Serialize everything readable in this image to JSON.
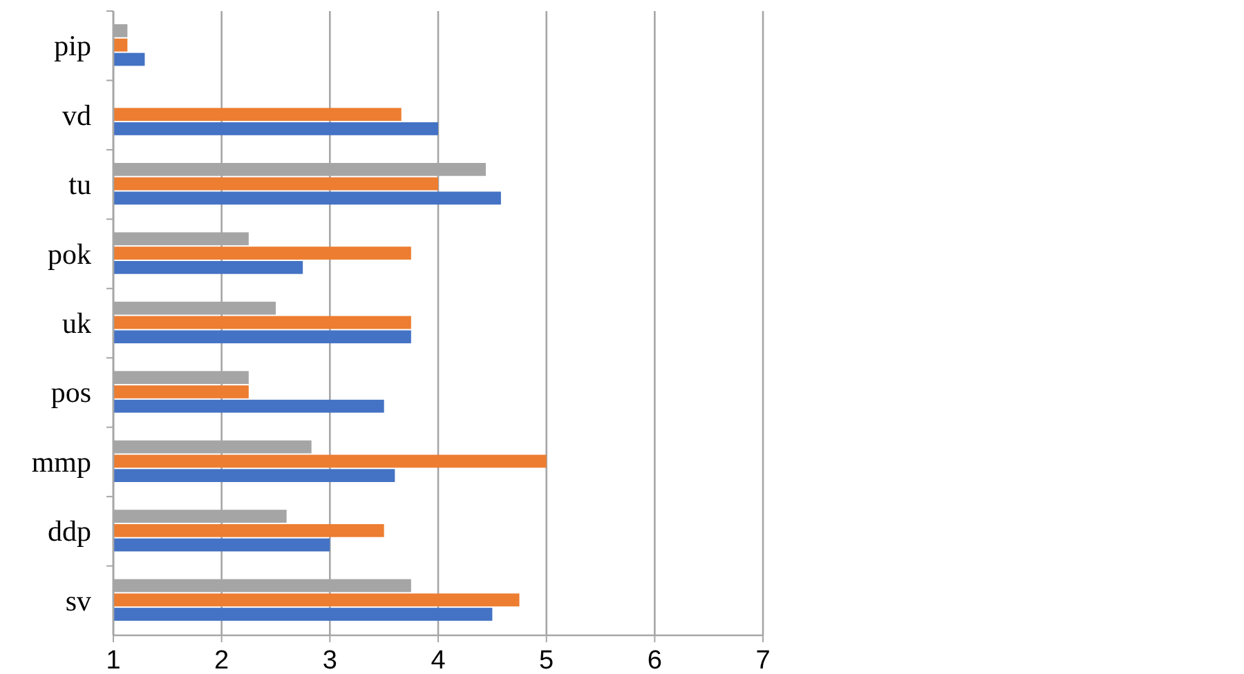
{
  "chart_data": {
    "type": "bar",
    "orientation": "horizontal",
    "categories": [
      "pip",
      "vd",
      "tu",
      "pok",
      "uk",
      "pos",
      "mmp",
      "ddp",
      "sv"
    ],
    "series": [
      {
        "color": "#a5a5a5",
        "values": [
          1.13,
          null,
          4.44,
          2.25,
          2.5,
          2.25,
          2.83,
          2.6,
          3.75
        ]
      },
      {
        "color": "#ed7d31",
        "values": [
          1.13,
          3.66,
          4.0,
          3.75,
          3.75,
          2.25,
          5.0,
          3.5,
          4.75
        ]
      },
      {
        "color": "#4472c4",
        "values": [
          1.29,
          4.0,
          4.58,
          2.75,
          3.75,
          3.5,
          3.6,
          3.0,
          4.5
        ]
      }
    ],
    "xlim": [
      1,
      7
    ],
    "xticks": [
      1,
      2,
      3,
      4,
      5,
      6,
      7
    ],
    "grid": "x"
  }
}
